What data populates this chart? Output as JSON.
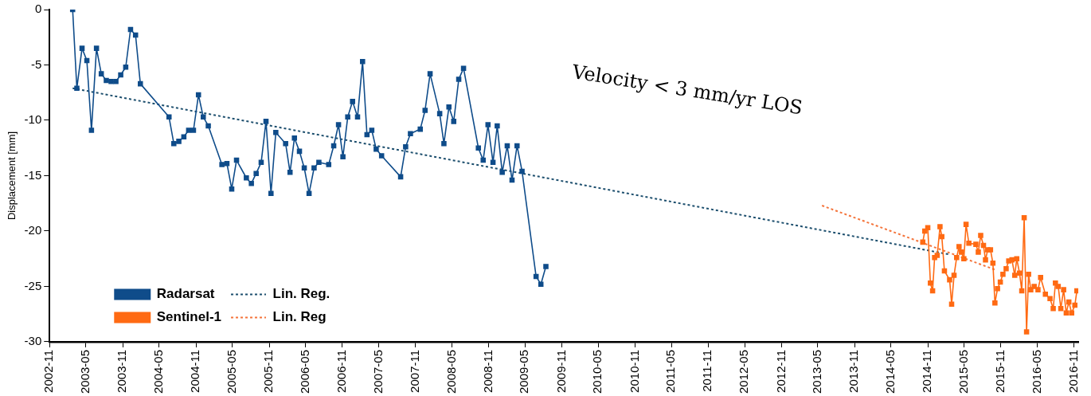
{
  "chart_data": {
    "type": "line",
    "ylabel": "Displacement [mm]",
    "xlim": [
      "2002-11",
      "2016-11-21"
    ],
    "xticks": [
      "2002-11",
      "2003-05",
      "2003-11",
      "2004-05",
      "2004-11",
      "2005-05",
      "2005-11",
      "2006-05",
      "2006-11",
      "2007-05",
      "2007-11",
      "2008-05",
      "2008-11",
      "2009-05",
      "2009-11",
      "2010-05",
      "2010-11",
      "2011-05",
      "2011-11",
      "2012-05",
      "2012-11",
      "2013-05",
      "2013-11",
      "2014-05",
      "2014-11",
      "2015-05",
      "2015-11",
      "2016-05",
      "2016-11"
    ],
    "ylim": [
      -30,
      0
    ],
    "yticks": [
      -30,
      -25,
      -20,
      -15,
      -10,
      -5,
      0
    ],
    "grid": false,
    "legend": "bottom left",
    "marker": "square",
    "annotations": [
      "Velocity < 3 mm/yr LOS"
    ],
    "series": [
      {
        "name": "Radarsat",
        "color": "#0f4c8a",
        "x": [
          "2003-02-24",
          "2003-03-17",
          "2003-04-12",
          "2003-05-06",
          "2003-05-29",
          "2003-06-23",
          "2003-07-17",
          "2003-08-11",
          "2003-09-04",
          "2003-09-28",
          "2003-10-22",
          "2003-11-16",
          "2003-12-10",
          "2004-01-04",
          "2004-01-28",
          "2004-06-19",
          "2004-07-13",
          "2004-08-07",
          "2004-09-01",
          "2004-09-25",
          "2004-10-19",
          "2004-11-13",
          "2004-12-07",
          "2005-01-01",
          "2005-03-10",
          "2005-04-04",
          "2005-04-28",
          "2005-05-22",
          "2005-07-10",
          "2005-08-04",
          "2005-08-28",
          "2005-09-22",
          "2005-10-16",
          "2005-11-10",
          "2005-12-04",
          "2006-01-22",
          "2006-02-13",
          "2006-03-07",
          "2006-04-01",
          "2006-04-25",
          "2006-05-19",
          "2006-06-13",
          "2006-07-07",
          "2006-08-25",
          "2006-09-19",
          "2006-10-13",
          "2006-11-04",
          "2006-11-28",
          "2006-12-22",
          "2007-01-16",
          "2007-02-10",
          "2007-03-04",
          "2007-03-28",
          "2007-04-19",
          "2007-05-16",
          "2007-08-19",
          "2007-09-13",
          "2007-10-07",
          "2007-11-25",
          "2007-12-19",
          "2008-01-13",
          "2008-03-01",
          "2008-03-22",
          "2008-04-16",
          "2008-05-10",
          "2008-06-04",
          "2008-06-28",
          "2008-09-10",
          "2008-10-04",
          "2008-10-28",
          "2008-11-22",
          "2008-12-13",
          "2009-01-07",
          "2009-02-01",
          "2009-02-25",
          "2009-03-22",
          "2009-04-16",
          "2009-06-25",
          "2009-07-19",
          "2009-08-13"
        ],
        "values": [
          0,
          -7.1,
          -3.5,
          -4.6,
          -10.9,
          -3.5,
          -5.8,
          -6.4,
          -6.5,
          -6.5,
          -5.9,
          -5.2,
          -1.8,
          -2.3,
          -6.7,
          -9.7,
          -12.1,
          -11.9,
          -11.5,
          -10.9,
          -10.9,
          -7.7,
          -9.7,
          -10.5,
          -14,
          -13.9,
          -16.2,
          -13.6,
          -15.2,
          -15.7,
          -14.8,
          -13.8,
          -10.1,
          -16.6,
          -11.1,
          -12.1,
          -14.7,
          -11.6,
          -12.8,
          -14.3,
          -16.6,
          -14.3,
          -13.8,
          -14,
          -12.3,
          -10.4,
          -13.3,
          -9.7,
          -8.3,
          -9.7,
          -4.7,
          -11.3,
          -10.9,
          -12.6,
          -13.2,
          -15.1,
          -12.4,
          -11.2,
          -10.8,
          -9.1,
          -5.8,
          -9.4,
          -12.1,
          -8.8,
          -10.1,
          -6.3,
          -5.3,
          -12.5,
          -13.6,
          -10.4,
          -13.8,
          -10.5,
          -14.7,
          -12.3,
          -15.4,
          -12.3,
          -14.6,
          -24.1,
          -24.8,
          -23.2
        ]
      },
      {
        "name": "Sentinel-1",
        "color": "#ff6a13",
        "x": [
          "2014-10-07",
          "2014-10-17",
          "2014-11-01",
          "2014-11-14",
          "2014-11-25",
          "2014-12-05",
          "2014-12-18",
          "2015-01-01",
          "2015-01-10",
          "2015-01-23",
          "2015-02-18",
          "2015-02-28",
          "2015-03-12",
          "2015-03-25",
          "2015-04-06",
          "2015-04-18",
          "2015-04-30",
          "2015-05-11",
          "2015-05-25",
          "2015-06-29",
          "2015-07-11",
          "2015-07-23",
          "2015-08-06",
          "2015-08-16",
          "2015-08-27",
          "2015-09-10",
          "2015-09-22",
          "2015-10-02",
          "2015-10-15",
          "2015-10-29",
          "2015-11-11",
          "2015-11-27",
          "2015-12-10",
          "2015-12-26",
          "2016-01-09",
          "2016-01-19",
          "2016-02-02",
          "2016-02-13",
          "2016-02-25",
          "2016-03-08",
          "2016-03-18",
          "2016-03-29",
          "2016-04-15",
          "2016-05-04",
          "2016-05-17",
          "2016-06-10",
          "2016-07-03",
          "2016-07-19",
          "2016-07-30",
          "2016-08-13",
          "2016-08-26",
          "2016-09-09",
          "2016-09-22",
          "2016-10-05",
          "2016-10-19",
          "2016-11-04",
          "2016-11-14"
        ],
        "values": [
          -21,
          -20,
          -19.7,
          -24.7,
          -25.4,
          -22.4,
          -22.2,
          -19.6,
          -20.5,
          -23.6,
          -24.4,
          -26.6,
          -24,
          -22.4,
          -21.4,
          -21.9,
          -22.5,
          -19.4,
          -21.1,
          -21.2,
          -21.9,
          -20.4,
          -21.3,
          -22.6,
          -21.7,
          -21.7,
          -22.9,
          -26.5,
          -25.2,
          -24.6,
          -23.9,
          -23.4,
          -22.7,
          -22.6,
          -24,
          -22.5,
          -23.8,
          -25.4,
          -18.8,
          -29.1,
          -23.9,
          -25.3,
          -25,
          -25.3,
          -24.2,
          -25.7,
          -26.1,
          -27,
          -24.7,
          -25,
          -27,
          -25.3,
          -27.4,
          -26.4,
          -27.4,
          -26.7,
          -25.4
        ]
      },
      {
        "name": "Lin. Reg.",
        "color": "#1d4f6e",
        "type": "line",
        "line_style": "dashed",
        "marker": "none",
        "x": [
          "2003-02-24",
          "2015-02-13"
        ],
        "values": [
          -7.1,
          -22.1
        ]
      },
      {
        "name": "Lin. Reg",
        "color": "#f4743b",
        "type": "line",
        "line_style": "dashed",
        "marker": "none",
        "x": [
          "2013-05-22",
          "2015-10-04"
        ],
        "values": [
          -17.7,
          -23.5
        ]
      }
    ]
  }
}
